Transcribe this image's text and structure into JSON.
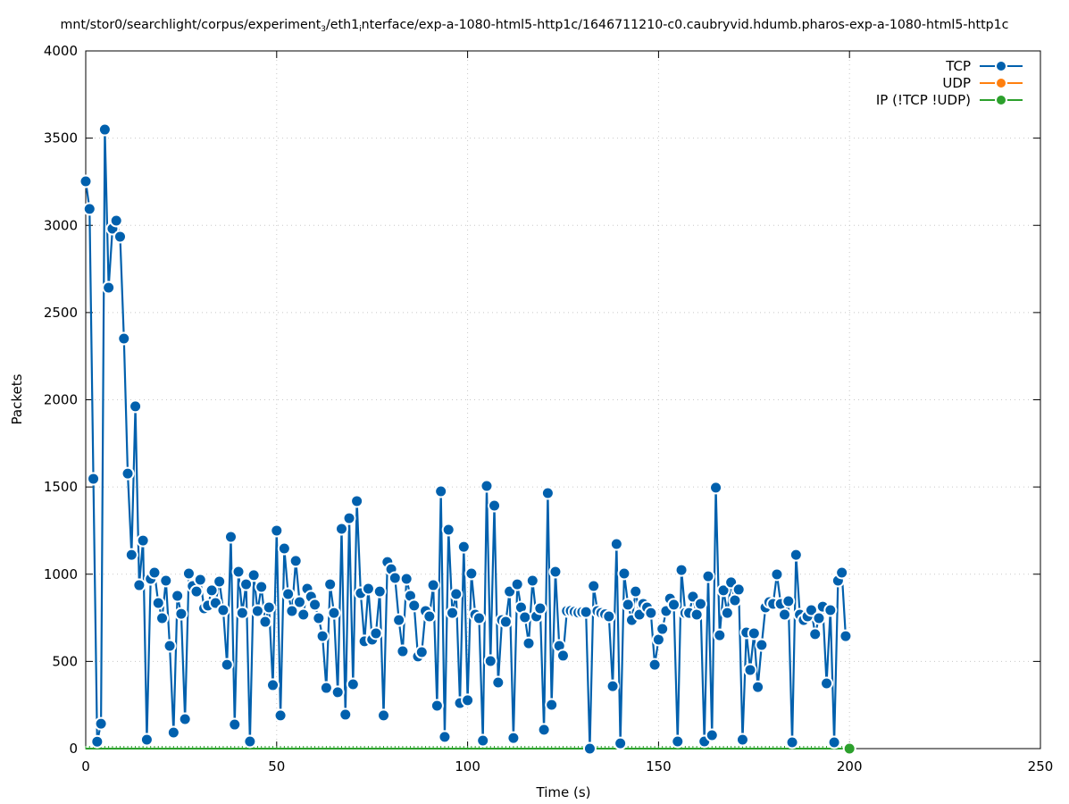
{
  "chart_data": {
    "type": "line",
    "title_parts": [
      "mnt/stor0/searchlight/corpus/experiment",
      "3",
      "/eth1",
      "i",
      "nterface/exp-a-1080-html5-http1c/1646711210-c0.caubryvid.hdumb.pharos-exp-a-1080-html5-http1c"
    ],
    "xlabel": "Time (s)",
    "ylabel": "Packets",
    "xlim": [
      0,
      250
    ],
    "ylim": [
      0,
      4000
    ],
    "xticks": [
      0,
      50,
      100,
      150,
      200,
      250
    ],
    "yticks": [
      0,
      500,
      1000,
      1500,
      2000,
      2500,
      3000,
      3500,
      4000
    ],
    "grid": true,
    "legend_position": "top-right",
    "series": [
      {
        "name": "TCP",
        "color": "#0060ad",
        "x_start": 0,
        "x_step": 1,
        "values": [
          3252,
          3094,
          1547,
          40,
          143,
          3549,
          2643,
          2981,
          3027,
          2935,
          2351,
          1577,
          1111,
          1962,
          937,
          1193,
          51,
          973,
          1009,
          835,
          748,
          963,
          589,
          92,
          876,
          773,
          169,
          1004,
          932,
          901,
          968,
          804,
          820,
          907,
          835,
          958,
          794,
          481,
          1214,
          138,
          1014,
          778,
          942,
          41,
          994,
          789,
          927,
          727,
          809,
          364,
          1250,
          190,
          1147,
          886,
          789,
          1076,
          840,
          768,
          917,
          871,
          825,
          748,
          645,
          348,
          942,
          778,
          323,
          1260,
          195,
          1321,
          369,
          1419,
          891,
          615,
          917,
          625,
          661,
          901,
          190,
          1070,
          1029,
          978,
          737,
          558,
          973,
          876,
          820,
          528,
          553,
          789,
          758,
          937,
          246,
          1475,
          67,
          1255,
          778,
          886,
          261,
          1157,
          277,
          1004,
          768,
          748,
          46,
          1506,
          502,
          1393,
          379,
          737,
          727,
          901,
          61,
          942,
          809,
          753,
          604,
          963,
          758,
          804,
          108,
          1465,
          251,
          1014,
          589,
          533,
          789,
          790,
          785,
          780,
          783,
          783,
          0,
          932,
          789,
          778,
          770,
          758,
          358,
          1173,
          30,
          1004,
          825,
          737,
          901,
          768,
          830,
          809,
          778,
          481,
          625,
          686,
          789,
          860,
          825,
          41,
          1024,
          778,
          778,
          871,
          768,
          830,
          41,
          988,
          77,
          1496,
          650,
          907,
          778,
          953,
          850,
          912,
          51,
          666,
          451,
          661,
          353,
          594,
          809,
          840,
          830,
          999,
          830,
          768,
          845,
          36,
          1111,
          768,
          737,
          758,
          794,
          656,
          748,
          814,
          374,
          794,
          36,
          963,
          1009,
          645
        ]
      },
      {
        "name": "UDP",
        "color": "#ff7f0e",
        "values": []
      },
      {
        "name": "IP (!TCP  !UDP)",
        "color": "#2ca02c",
        "x_start": 0,
        "x_step": 1,
        "values_note_free": true,
        "values": [
          0,
          0,
          0,
          0,
          0,
          0,
          0,
          0,
          0,
          0,
          0,
          0,
          0,
          0,
          0,
          0,
          0,
          0,
          0,
          0,
          0,
          0,
          0,
          0,
          0,
          0,
          0,
          0,
          0,
          0,
          0,
          0,
          0,
          0,
          0,
          0,
          0,
          0,
          0,
          0,
          0,
          0,
          0,
          0,
          0,
          0,
          0,
          0,
          0,
          0,
          0,
          0,
          0,
          0,
          0,
          0,
          0,
          0,
          0,
          0,
          0,
          0,
          0,
          0,
          0,
          0,
          0,
          0,
          0,
          0,
          0,
          0,
          0,
          0,
          0,
          0,
          0,
          0,
          0,
          0,
          0,
          0,
          0,
          0,
          0,
          0,
          0,
          0,
          0,
          0,
          0,
          0,
          0,
          0,
          0,
          0,
          0,
          0,
          0,
          0,
          0,
          0,
          0,
          0,
          0,
          0,
          0,
          0,
          0,
          0,
          0,
          0,
          0,
          0,
          0,
          0,
          0,
          0,
          0,
          0,
          0,
          0,
          0,
          0,
          0,
          0,
          0,
          0,
          0,
          0,
          0,
          0,
          0,
          0,
          0,
          0,
          0,
          0,
          0,
          0,
          0,
          0,
          0,
          0,
          0,
          0,
          0,
          0,
          0,
          0,
          0,
          0,
          0,
          0,
          0,
          0,
          0,
          0,
          0,
          0,
          0,
          0,
          0,
          0,
          0,
          0,
          0,
          0,
          0,
          0,
          0,
          0,
          0,
          0,
          0,
          0,
          0,
          0,
          0,
          0,
          0,
          0,
          0,
          0,
          0,
          0,
          0,
          0,
          0,
          0,
          0,
          0,
          0,
          0,
          0,
          0,
          0,
          0,
          0,
          0,
          0
        ],
        "marker_at_x": 200
      }
    ]
  }
}
